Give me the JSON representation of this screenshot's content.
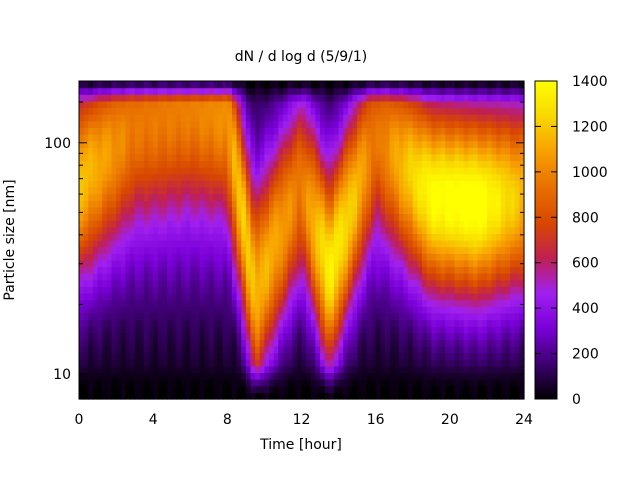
{
  "chart_data": {
    "type": "heatmap",
    "title": "dN / d log d (5/9/1)",
    "xlabel": "Time [hour]",
    "ylabel": "Particle size [nm]",
    "x_range": [
      0,
      24
    ],
    "x_ticks": [
      0,
      4,
      8,
      12,
      16,
      20,
      24
    ],
    "x_tick_labels": [
      "0",
      "4",
      "8",
      "12",
      "16",
      "20",
      "24"
    ],
    "y_scale": "log",
    "y_range": [
      7.8,
      185
    ],
    "y_ticks": [
      10,
      100
    ],
    "y_tick_labels": [
      "10",
      "100"
    ],
    "colorbar": {
      "range": [
        0,
        1400
      ],
      "ticks": [
        0,
        200,
        400,
        600,
        800,
        1000,
        1200,
        1400
      ],
      "tick_labels": [
        "0",
        "200",
        "400",
        "600",
        "800",
        "1000",
        "1200",
        "1400"
      ],
      "colormap": [
        "#000000",
        "#3d0070",
        "#7a00d8",
        "#a020f0",
        "#c02050",
        "#d84800",
        "#e87000",
        "#f8a000",
        "#f8d800",
        "#ffff00"
      ]
    },
    "description_profile": [
      {
        "hour": 0,
        "peak_nm": 70,
        "peak_value": 950
      },
      {
        "hour": 3,
        "peak_nm": 130,
        "peak_value": 800
      },
      {
        "hour": 6,
        "peak_nm": 150,
        "peak_value": 850
      },
      {
        "hour": 8,
        "peak_nm": 140,
        "peak_value": 900
      },
      {
        "hour": 9.5,
        "peak_nm": 20,
        "peak_value": 1000
      },
      {
        "hour": 12,
        "peak_nm": 70,
        "peak_value": 700
      },
      {
        "hour": 13.5,
        "peak_nm": 25,
        "peak_value": 1150
      },
      {
        "hour": 16,
        "peak_nm": 120,
        "peak_value": 750
      },
      {
        "hour": 19,
        "peak_nm": 60,
        "peak_value": 1150
      },
      {
        "hour": 21.5,
        "peak_nm": 55,
        "peak_value": 1200
      },
      {
        "hour": 24,
        "peak_nm": 60,
        "peak_value": 900
      }
    ]
  }
}
